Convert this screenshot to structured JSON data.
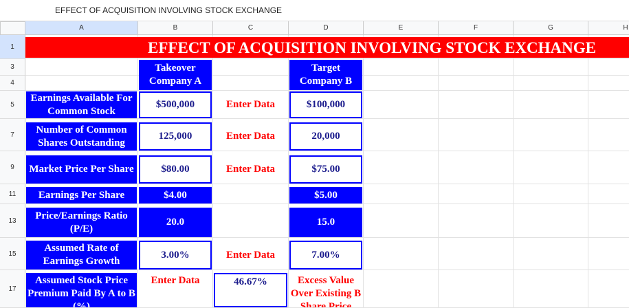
{
  "window_title": "EFFECT OF ACQUISITION INVOLVING STOCK EXCHANGE",
  "columns": [
    "A",
    "B",
    "C",
    "D",
    "E",
    "F",
    "G",
    "H"
  ],
  "row_numbers": [
    "1",
    "3",
    "4",
    "5",
    "7",
    "9",
    "11",
    "13",
    "15",
    "17"
  ],
  "banner": "EFFECT OF ACQUISITION INVOLVING STOCK EXCHANGE",
  "table": {
    "rows": [
      [
        null,
        "Takeover Company A",
        null,
        "Target Company B"
      ],
      [
        "Earnings Available For Common Stock",
        "$500,000",
        "Enter Data",
        "$100,000"
      ],
      [
        "Number of Common Shares Outstanding",
        "125,000",
        "Enter Data",
        "20,000"
      ],
      [
        "Market Price Per Share",
        "$80.00",
        "Enter Data",
        "$75.00"
      ],
      [
        "Earnings Per Share",
        "$4.00",
        null,
        "$5.00"
      ],
      [
        "Price/Earnings Ratio (P/E)",
        "20.0",
        null,
        "15.0"
      ],
      [
        "Assumed Rate of Earnings Growth",
        "3.00%",
        "Enter Data",
        "7.00%"
      ],
      [
        "Assumed Stock Price Premium Paid By A to B (%)",
        "Enter Data",
        "46.67%",
        "Excess Value Over Existing B Share Price"
      ]
    ]
  }
}
